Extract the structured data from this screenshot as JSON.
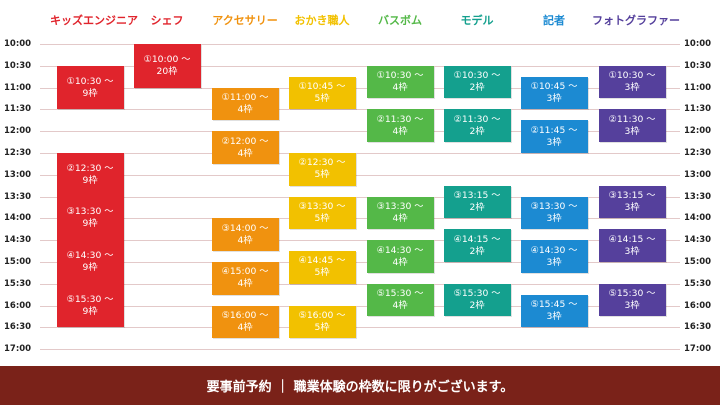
{
  "times": [
    "10:00",
    "10:30",
    "11:00",
    "11:30",
    "12:00",
    "12:30",
    "13:00",
    "13:30",
    "14:00",
    "14:30",
    "15:00",
    "15:30",
    "16:00",
    "16:30",
    "17:00"
  ],
  "footer": "要事前予約 ｜ 職業体験の枠数に限りがございます。",
  "columns": [
    {
      "name": "キッズエンジニア",
      "color": "#e0242c",
      "slots": [
        {
          "time": "①10:30 ～",
          "cap": "9枠",
          "start": "10:30",
          "end": "11:30"
        },
        {
          "time": "②12:30 ～",
          "cap": "9枠",
          "start": "12:30",
          "end": "13:30"
        },
        {
          "time": "③13:30 ～",
          "cap": "9枠",
          "start": "13:30",
          "end": "14:30"
        },
        {
          "time": "④14:30 ～",
          "cap": "9枠",
          "start": "14:30",
          "end": "15:30"
        },
        {
          "time": "⑤15:30 ～",
          "cap": "9枠",
          "start": "15:30",
          "end": "16:30"
        }
      ]
    },
    {
      "name": "シェフ",
      "color": "#e0242c",
      "slots": [
        {
          "time": "①10:00 ～",
          "cap": "20枠",
          "start": "10:00",
          "end": "11:00"
        }
      ]
    },
    {
      "name": "アクセサリー",
      "color": "#f0920f",
      "slots": [
        {
          "time": "①11:00 ～",
          "cap": "4枠",
          "start": "11:00",
          "end": "11:45"
        },
        {
          "time": "②12:00 ～",
          "cap": "4枠",
          "start": "12:00",
          "end": "12:45"
        },
        {
          "time": "③14:00 ～",
          "cap": "4枠",
          "start": "14:00",
          "end": "14:45"
        },
        {
          "time": "④15:00 ～",
          "cap": "4枠",
          "start": "15:00",
          "end": "15:45"
        },
        {
          "time": "⑤16:00 ～",
          "cap": "4枠",
          "start": "16:00",
          "end": "16:45"
        }
      ]
    },
    {
      "name": "おかき職人",
      "color": "#f2c100",
      "slots": [
        {
          "time": "①10:45 ～",
          "cap": "5枠",
          "start": "10:45",
          "end": "11:30"
        },
        {
          "time": "②12:30 ～",
          "cap": "5枠",
          "start": "12:30",
          "end": "13:15"
        },
        {
          "time": "③13:30 ～",
          "cap": "5枠",
          "start": "13:30",
          "end": "14:15"
        },
        {
          "time": "④14:45 ～",
          "cap": "5枠",
          "start": "14:45",
          "end": "15:30"
        },
        {
          "time": "⑤16:00 ～",
          "cap": "5枠",
          "start": "16:00",
          "end": "16:45"
        }
      ]
    },
    {
      "name": "バスボム",
      "color": "#54b848",
      "slots": [
        {
          "time": "①10:30 ～",
          "cap": "4枠",
          "start": "10:30",
          "end": "11:15"
        },
        {
          "time": "②11:30 ～",
          "cap": "4枠",
          "start": "11:30",
          "end": "12:15"
        },
        {
          "time": "③13:30 ～",
          "cap": "4枠",
          "start": "13:30",
          "end": "14:15"
        },
        {
          "time": "④14:30 ～",
          "cap": "4枠",
          "start": "14:30",
          "end": "15:15"
        },
        {
          "time": "⑤15:30 ～",
          "cap": "4枠",
          "start": "15:30",
          "end": "16:15"
        }
      ]
    },
    {
      "name": "モデル",
      "color": "#14a08e",
      "slots": [
        {
          "time": "①10:30 ～",
          "cap": "2枠",
          "start": "10:30",
          "end": "11:15"
        },
        {
          "time": "②11:30 ～",
          "cap": "2枠",
          "start": "11:30",
          "end": "12:15"
        },
        {
          "time": "③13:15 ～",
          "cap": "2枠",
          "start": "13:15",
          "end": "14:00"
        },
        {
          "time": "④14:15 ～",
          "cap": "2枠",
          "start": "14:15",
          "end": "15:00"
        },
        {
          "time": "⑤15:30 ～",
          "cap": "2枠",
          "start": "15:30",
          "end": "16:15"
        }
      ]
    },
    {
      "name": "記者",
      "color": "#1c8ad2",
      "slots": [
        {
          "time": "①10:45 ～",
          "cap": "3枠",
          "start": "10:45",
          "end": "11:30"
        },
        {
          "time": "②11:45 ～",
          "cap": "3枠",
          "start": "11:45",
          "end": "12:30"
        },
        {
          "time": "③13:30 ～",
          "cap": "3枠",
          "start": "13:30",
          "end": "14:15"
        },
        {
          "time": "④14:30 ～",
          "cap": "3枠",
          "start": "14:30",
          "end": "15:15"
        },
        {
          "time": "⑤15:45 ～",
          "cap": "3枠",
          "start": "15:45",
          "end": "16:30"
        }
      ]
    },
    {
      "name": "フォトグラファー",
      "color": "#55409c",
      "slots": [
        {
          "time": "①10:30 ～",
          "cap": "3枠",
          "start": "10:30",
          "end": "11:15"
        },
        {
          "time": "②11:30 ～",
          "cap": "3枠",
          "start": "11:30",
          "end": "12:15"
        },
        {
          "time": "③13:15 ～",
          "cap": "3枠",
          "start": "13:15",
          "end": "14:00"
        },
        {
          "time": "④14:15 ～",
          "cap": "3枠",
          "start": "14:15",
          "end": "15:00"
        },
        {
          "time": "⑤15:30 ～",
          "cap": "3枠",
          "start": "15:30",
          "end": "16:15"
        }
      ]
    }
  ]
}
